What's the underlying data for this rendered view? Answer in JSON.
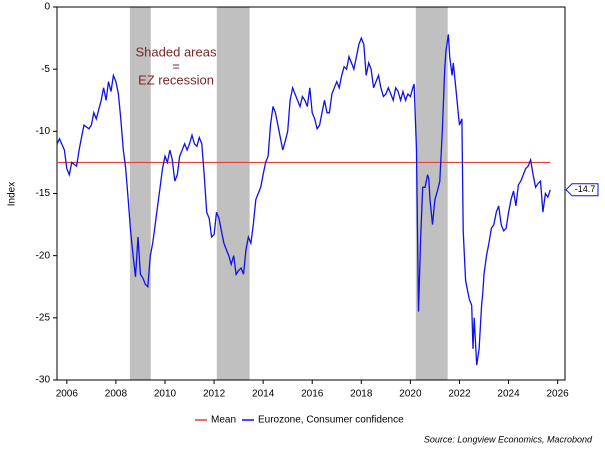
{
  "chart_data": {
    "type": "line",
    "y_label": "Index",
    "annotation": [
      "Shaded areas",
      "=",
      "EZ recession"
    ],
    "source": "Source: Longview Economics, Macrobond",
    "recessions": [
      [
        2008.57,
        2009.42
      ],
      [
        2012.11,
        2013.45
      ],
      [
        2020.22,
        2021.52
      ]
    ],
    "recession_color": "#c0c0c0",
    "mean": {
      "name": "Mean",
      "color": "#e8403a",
      "value": -12.5
    },
    "x": [
      2005.6,
      2005.7,
      2005.9,
      2006.0,
      2006.1,
      2006.2,
      2006.4,
      2006.5,
      2006.6,
      2006.7,
      2006.9,
      2007.0,
      2007.1,
      2007.2,
      2007.4,
      2007.5,
      2007.6,
      2007.7,
      2007.8,
      2007.9,
      2008.0,
      2008.1,
      2008.2,
      2008.3,
      2008.4,
      2008.5,
      2008.6,
      2008.7,
      2008.8,
      2008.9,
      2009.0,
      2009.1,
      2009.2,
      2009.3,
      2009.4,
      2009.5,
      2009.6,
      2009.7,
      2009.8,
      2009.9,
      2010.0,
      2010.1,
      2010.2,
      2010.3,
      2010.4,
      2010.5,
      2010.6,
      2010.7,
      2010.8,
      2010.9,
      2011.0,
      2011.1,
      2011.2,
      2011.3,
      2011.4,
      2011.5,
      2011.6,
      2011.7,
      2011.8,
      2011.9,
      2012.0,
      2012.1,
      2012.2,
      2012.3,
      2012.4,
      2012.5,
      2012.6,
      2012.7,
      2012.8,
      2012.9,
      2013.0,
      2013.1,
      2013.2,
      2013.3,
      2013.4,
      2013.5,
      2013.6,
      2013.7,
      2013.8,
      2013.9,
      2014.0,
      2014.1,
      2014.2,
      2014.3,
      2014.4,
      2014.5,
      2014.6,
      2014.7,
      2014.8,
      2014.9,
      2015.0,
      2015.1,
      2015.2,
      2015.3,
      2015.4,
      2015.5,
      2015.6,
      2015.7,
      2015.8,
      2015.9,
      2016.0,
      2016.1,
      2016.2,
      2016.3,
      2016.4,
      2016.5,
      2016.6,
      2016.7,
      2016.8,
      2016.9,
      2017.0,
      2017.1,
      2017.2,
      2017.3,
      2017.4,
      2017.5,
      2017.6,
      2017.7,
      2017.8,
      2017.9,
      2018.0,
      2018.1,
      2018.2,
      2018.3,
      2018.4,
      2018.5,
      2018.6,
      2018.7,
      2018.8,
      2018.9,
      2019.0,
      2019.1,
      2019.2,
      2019.3,
      2019.4,
      2019.5,
      2019.6,
      2019.7,
      2019.8,
      2019.9,
      2020.0,
      2020.1,
      2020.15,
      2020.25,
      2020.33,
      2020.42,
      2020.5,
      2020.6,
      2020.7,
      2020.75,
      2020.8,
      2020.9,
      2021.0,
      2021.1,
      2021.2,
      2021.3,
      2021.4,
      2021.45,
      2021.55,
      2021.6,
      2021.7,
      2021.75,
      2021.85,
      2021.95,
      2022.0,
      2022.1,
      2022.15,
      2022.25,
      2022.3,
      2022.4,
      2022.5,
      2022.55,
      2022.6,
      2022.7,
      2022.8,
      2022.9,
      2022.95,
      2023.0,
      2023.1,
      2023.2,
      2023.3,
      2023.4,
      2023.5,
      2023.6,
      2023.7,
      2023.8,
      2023.9,
      2024.0,
      2024.1,
      2024.2,
      2024.3,
      2024.4,
      2024.5,
      2024.6,
      2024.7,
      2024.8,
      2024.9,
      2025.0,
      2025.1,
      2025.2,
      2025.3,
      2025.4,
      2025.5,
      2025.6,
      2025.7
    ],
    "series": [
      {
        "name": "Eurozone, Consumer confidence",
        "color": "#1010e8",
        "values": [
          -11,
          -10.6,
          -11.5,
          -13,
          -13.5,
          -12.5,
          -12.8,
          -11.5,
          -10.5,
          -9.5,
          -9.8,
          -9.5,
          -8.5,
          -9,
          -7.5,
          -6.5,
          -7.5,
          -6,
          -6.8,
          -5.5,
          -6,
          -7,
          -9,
          -11.5,
          -13,
          -15.5,
          -18,
          -20,
          -21.7,
          -18.5,
          -21.5,
          -21.8,
          -22.3,
          -22.5,
          -20,
          -19,
          -17.5,
          -16,
          -14.5,
          -13,
          -12,
          -12.5,
          -11.5,
          -12.3,
          -14,
          -13.5,
          -12,
          -11.5,
          -11,
          -11.5,
          -11,
          -10.3,
          -11,
          -11.2,
          -10.5,
          -11,
          -13.5,
          -16.5,
          -17,
          -18.5,
          -18.3,
          -16.5,
          -17,
          -18,
          -19,
          -19.5,
          -20,
          -20.7,
          -20,
          -21.5,
          -21.2,
          -21,
          -21.5,
          -19.5,
          -18.5,
          -19,
          -17.5,
          -15.5,
          -15,
          -14.5,
          -13.5,
          -12.5,
          -12,
          -9.5,
          -8,
          -8.5,
          -9.5,
          -10.5,
          -11.5,
          -10.8,
          -10,
          -7.5,
          -6.5,
          -7,
          -7.5,
          -8,
          -7.2,
          -7.5,
          -8,
          -6.5,
          -8.5,
          -9,
          -9.8,
          -9.5,
          -8.5,
          -7.5,
          -8.5,
          -8.5,
          -7,
          -6.5,
          -6,
          -6.5,
          -5.5,
          -4.8,
          -5,
          -4,
          -4.5,
          -5,
          -4,
          -3,
          -2.5,
          -3,
          -5.5,
          -4.5,
          -5,
          -6.5,
          -6,
          -5.5,
          -6.5,
          -7.2,
          -7,
          -6.5,
          -7,
          -7.5,
          -6.5,
          -6.8,
          -7.5,
          -6.8,
          -7.5,
          -7,
          -7.2,
          -6.5,
          -6.2,
          -11.5,
          -24.5,
          -18.5,
          -14.5,
          -14.5,
          -13.5,
          -13.8,
          -15.5,
          -17.5,
          -15.5,
          -14.8,
          -14,
          -10,
          -5,
          -3.5,
          -2.2,
          -4,
          -5.5,
          -4.5,
          -6.5,
          -8.5,
          -9.5,
          -9,
          -18,
          -22,
          -22.5,
          -23.5,
          -24,
          -27.5,
          -25,
          -28.8,
          -27.5,
          -24,
          -23,
          -21.5,
          -20,
          -19,
          -17.8,
          -17.5,
          -16.5,
          -16,
          -17.5,
          -18,
          -17.8,
          -16.5,
          -15.5,
          -14.8,
          -16,
          -14.3,
          -14,
          -13.5,
          -13,
          -12.8,
          -12.3,
          -13.5,
          -14.5,
          -14.2,
          -14,
          -16.5,
          -15,
          -15.3,
          -14.7
        ]
      }
    ],
    "xlim": [
      2005.6,
      2026.3
    ],
    "xticks": [
      2006,
      2008,
      2010,
      2012,
      2014,
      2016,
      2018,
      2020,
      2022,
      2024,
      2026
    ],
    "ylim": [
      -30,
      0
    ],
    "yticks": [
      0,
      -5,
      -10,
      -15,
      -20,
      -25,
      -30
    ]
  }
}
